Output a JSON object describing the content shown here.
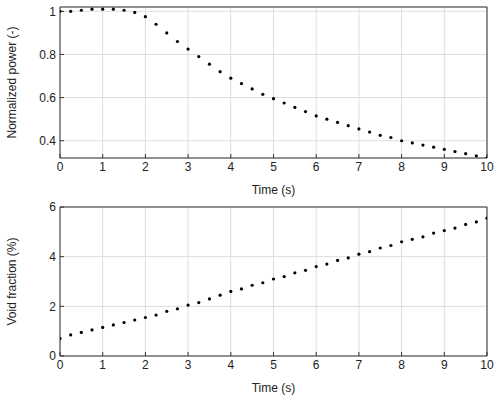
{
  "chart_data": [
    {
      "type": "scatter",
      "x_label": "Time (s)",
      "y_label": "Normalized power (-)",
      "x": [
        0,
        0.25,
        0.5,
        0.75,
        1,
        1.25,
        1.5,
        1.75,
        2,
        2.25,
        2.5,
        2.75,
        3,
        3.25,
        3.5,
        3.75,
        4,
        4.25,
        4.5,
        4.75,
        5,
        5.25,
        5.5,
        5.75,
        6,
        6.25,
        6.5,
        6.75,
        7,
        7.25,
        7.5,
        7.75,
        8,
        8.25,
        8.5,
        8.75,
        9,
        9.25,
        9.5,
        9.75,
        10
      ],
      "values": [
        1.0,
        1.0,
        1.005,
        1.01,
        1.01,
        1.01,
        1.005,
        0.995,
        0.975,
        0.94,
        0.9,
        0.86,
        0.825,
        0.79,
        0.755,
        0.72,
        0.69,
        0.665,
        0.64,
        0.615,
        0.595,
        0.575,
        0.555,
        0.535,
        0.515,
        0.5,
        0.485,
        0.47,
        0.455,
        0.44,
        0.425,
        0.415,
        0.4,
        0.39,
        0.38,
        0.37,
        0.36,
        0.35,
        0.34,
        0.33,
        0.32
      ],
      "color": "#000000",
      "marker": "dot",
      "xlim": [
        0,
        10
      ],
      "xticks": [
        0,
        1,
        2,
        3,
        4,
        5,
        6,
        7,
        8,
        9,
        10
      ],
      "ylim": [
        0.32,
        1.02
      ],
      "yticks": [
        0.4,
        0.6,
        0.8,
        1
      ],
      "grid": true
    },
    {
      "type": "scatter",
      "x_label": "Time (s)",
      "y_label": "Void fraction (%)",
      "x": [
        0,
        0.25,
        0.5,
        0.75,
        1,
        1.25,
        1.5,
        1.75,
        2,
        2.25,
        2.5,
        2.75,
        3,
        3.25,
        3.5,
        3.75,
        4,
        4.25,
        4.5,
        4.75,
        5,
        5.25,
        5.5,
        5.75,
        6,
        6.25,
        6.5,
        6.75,
        7,
        7.25,
        7.5,
        7.75,
        8,
        8.25,
        8.5,
        8.75,
        9,
        9.25,
        9.5,
        9.75,
        10
      ],
      "values": [
        0.7,
        0.85,
        0.95,
        1.05,
        1.15,
        1.25,
        1.35,
        1.45,
        1.55,
        1.65,
        1.8,
        1.9,
        2.05,
        2.15,
        2.3,
        2.45,
        2.6,
        2.7,
        2.85,
        2.95,
        3.1,
        3.2,
        3.35,
        3.45,
        3.6,
        3.7,
        3.85,
        3.95,
        4.1,
        4.2,
        4.35,
        4.45,
        4.6,
        4.7,
        4.8,
        4.95,
        5.05,
        5.15,
        5.3,
        5.4,
        5.55
      ],
      "color": "#000000",
      "marker": "dot",
      "xlim": [
        0,
        10
      ],
      "xticks": [
        0,
        1,
        2,
        3,
        4,
        5,
        6,
        7,
        8,
        9,
        10
      ],
      "ylim": [
        0,
        6
      ],
      "yticks": [
        0,
        2,
        4,
        6
      ],
      "grid": true
    }
  ]
}
